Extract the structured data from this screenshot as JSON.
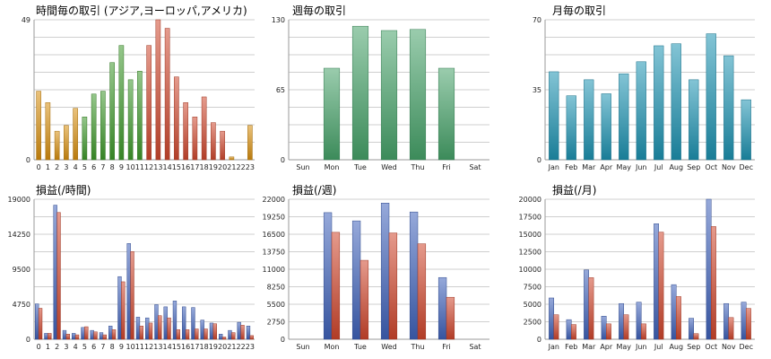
{
  "colors": {
    "hourly_asia": "#d9900f",
    "hourly_europe": "#3f9a2c",
    "hourly_america": "#d0492f",
    "weekly": "#47a36a",
    "monthly": "#1d93b2",
    "profit_blue": "#4063bb",
    "profit_red": "#d0472d"
  },
  "chart_data": [
    {
      "type": "bar",
      "title": "時間毎の取引 (アジア,ヨーロッパ,アメリカ)",
      "categories": [
        "0",
        "1",
        "2",
        "3",
        "4",
        "5",
        "6",
        "7",
        "8",
        "9",
        "10",
        "11",
        "12",
        "13",
        "14",
        "15",
        "16",
        "17",
        "18",
        "19",
        "20",
        "21",
        "22",
        "23"
      ],
      "values": [
        24,
        20,
        10,
        12,
        18,
        15,
        23,
        24,
        34,
        40,
        28,
        31,
        40,
        49,
        46,
        29,
        20,
        15,
        22,
        13,
        10,
        1,
        0,
        12
      ],
      "value_regions": [
        "asia",
        "asia",
        "asia",
        "asia",
        "asia",
        "europe",
        "europe",
        "europe",
        "europe",
        "europe",
        "europe",
        "europe",
        "america",
        "america",
        "america",
        "america",
        "america",
        "america",
        "america",
        "america",
        "america",
        "asia",
        "asia",
        "asia"
      ],
      "yticks": [
        0,
        49
      ],
      "ylim": [
        0,
        49
      ]
    },
    {
      "type": "bar",
      "title": "週毎の取引",
      "categories": [
        "Sun",
        "Mon",
        "Tue",
        "Wed",
        "Thu",
        "Fri",
        "Sat"
      ],
      "values": [
        0,
        85,
        124,
        120,
        121,
        85,
        0
      ],
      "yticks": [
        0,
        65,
        130
      ],
      "ylim": [
        0,
        130
      ]
    },
    {
      "type": "bar",
      "title": "月毎の取引",
      "categories": [
        "Jan",
        "Feb",
        "Mar",
        "Apr",
        "May",
        "Jun",
        "Jul",
        "Aug",
        "Sep",
        "Oct",
        "Nov",
        "Dec"
      ],
      "values": [
        44,
        32,
        40,
        33,
        43,
        49,
        57,
        58,
        40,
        63,
        52,
        30
      ],
      "yticks": [
        0,
        35,
        70
      ],
      "ylim": [
        0,
        70
      ]
    },
    {
      "type": "bar",
      "title": "損益(/時間)",
      "categories": [
        "0",
        "1",
        "2",
        "3",
        "4",
        "5",
        "6",
        "7",
        "8",
        "9",
        "10",
        "11",
        "12",
        "13",
        "14",
        "15",
        "16",
        "17",
        "18",
        "19",
        "20",
        "21",
        "22",
        "23"
      ],
      "series": [
        {
          "values": [
            4800,
            800,
            18200,
            1200,
            800,
            1600,
            1200,
            900,
            1800,
            8500,
            13000,
            3000,
            2900,
            4700,
            4400,
            5200,
            4400,
            4300,
            2600,
            2200,
            700,
            1200,
            2300,
            1800
          ]
        },
        {
          "values": [
            4200,
            800,
            17200,
            700,
            600,
            1700,
            1000,
            600,
            1300,
            7800,
            11900,
            1800,
            2200,
            3200,
            2900,
            1300,
            1300,
            1400,
            1400,
            2100,
            300,
            900,
            1900,
            500
          ]
        }
      ],
      "yticks": [
        0,
        4750,
        9500,
        14250,
        19000
      ],
      "ylim": [
        0,
        19000
      ]
    },
    {
      "type": "bar",
      "title": "損益(/週)",
      "categories": [
        "Sun",
        "Mon",
        "Tue",
        "Wed",
        "Thu",
        "Fri",
        "Sat"
      ],
      "series": [
        {
          "values": [
            0,
            19900,
            18600,
            21400,
            20000,
            9700,
            0
          ]
        },
        {
          "values": [
            0,
            16800,
            12400,
            16700,
            15000,
            6600,
            0
          ]
        }
      ],
      "yticks": [
        0,
        2750,
        5500,
        8250,
        11000,
        13750,
        16500,
        19250,
        22000
      ],
      "ylim": [
        0,
        22000
      ]
    },
    {
      "type": "bar",
      "title": "損益(/月)",
      "categories": [
        "Jan",
        "Feb",
        "Mar",
        "Apr",
        "May",
        "Jun",
        "Jul",
        "Aug",
        "Sep",
        "Oct",
        "Nov",
        "Dec"
      ],
      "series": [
        {
          "values": [
            5900,
            2800,
            9900,
            3300,
            5100,
            5300,
            16500,
            7800,
            3000,
            20000,
            5100,
            5300
          ]
        },
        {
          "values": [
            3500,
            2100,
            8800,
            2200,
            3500,
            2200,
            15300,
            6100,
            800,
            16100,
            3100,
            4400
          ]
        }
      ],
      "yticks": [
        0,
        2500,
        5000,
        7500,
        10000,
        12500,
        15000,
        17500,
        20000
      ],
      "ylim": [
        0,
        20000
      ]
    }
  ]
}
